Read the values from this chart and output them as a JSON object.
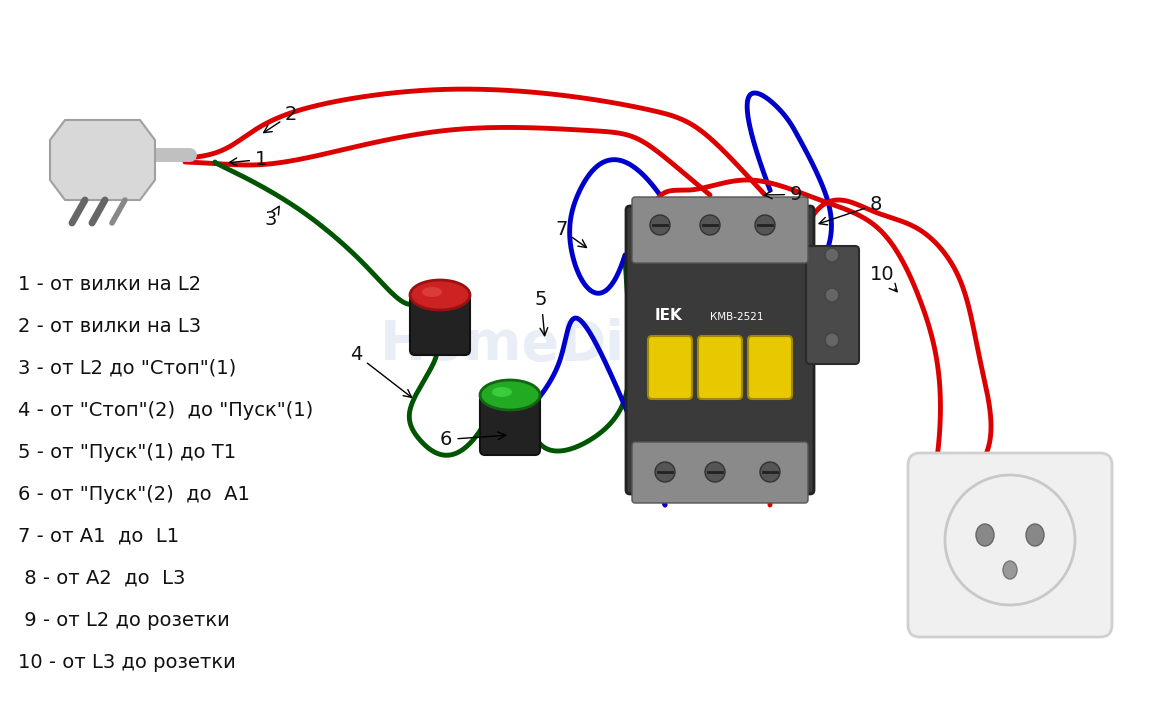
{
  "bg_color": "#ffffff",
  "legend_items": [
    "1 - от вилки на L2",
    "2 - от вилки на L3",
    "3 - от L2 до \"Стоп\"(1)",
    "4 - от \"Стоп\"(2)  до \"Пуск\"(1)",
    "5 - от \"Пуск\"(1) до Т1",
    "6 - от \"Пуск\"(2)  до  А1",
    "7 - от А1  до  L1",
    " 8 - от А2  до  L3",
    " 9 - от L2 до розетки",
    "10 - от L3 до розетки"
  ],
  "wire_color_red": "#dd0000",
  "wire_color_green": "#005500",
  "wire_color_blue": "#0000cc",
  "text_color": "#111111",
  "legend_fontsize": 14,
  "label_fontsize": 14,
  "wire_lw": 3.5
}
